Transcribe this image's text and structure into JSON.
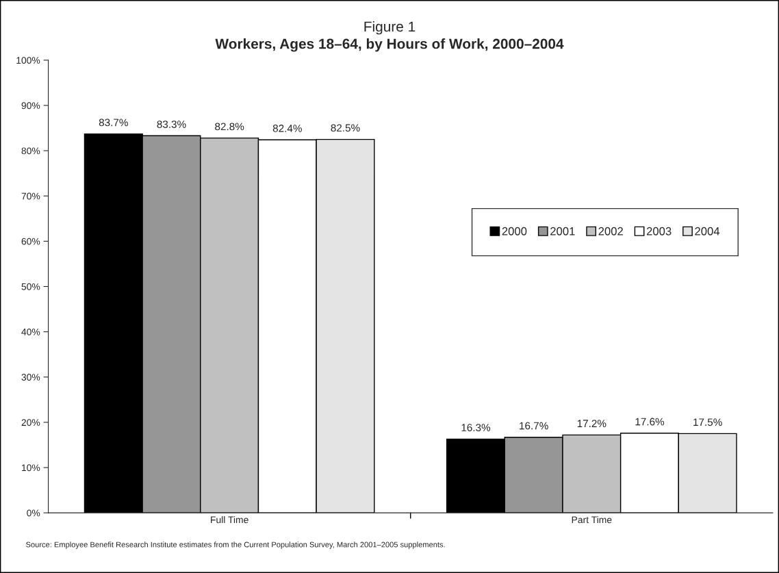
{
  "chart_data": {
    "type": "bar",
    "title": "Figure 1",
    "subtitle": "Workers, Ages 18–64, by Hours of Work, 2000–2004",
    "categories": [
      "Full Time",
      "Part Time"
    ],
    "series": [
      {
        "name": "2000",
        "color": "#000000",
        "values": [
          83.7,
          16.3
        ],
        "value_labels": [
          "83.7%",
          "16.3%"
        ]
      },
      {
        "name": "2001",
        "color": "#969696",
        "values": [
          83.3,
          16.7
        ],
        "value_labels": [
          "83.3%",
          "16.7%"
        ]
      },
      {
        "name": "2002",
        "color": "#c0c0c0",
        "values": [
          82.8,
          17.2
        ],
        "value_labels": [
          "82.8%",
          "17.2%"
        ]
      },
      {
        "name": "2003",
        "color": "#ffffff",
        "values": [
          82.4,
          17.6
        ],
        "value_labels": [
          "82.4%",
          "17.6%"
        ]
      },
      {
        "name": "2004",
        "color": "#e4e4e4",
        "values": [
          82.5,
          17.5
        ],
        "value_labels": [
          "82.5%",
          "17.5%"
        ]
      }
    ],
    "ylim": [
      0,
      100
    ],
    "yticks": [
      {
        "value": 0,
        "label": "0%"
      },
      {
        "value": 10,
        "label": "10%"
      },
      {
        "value": 20,
        "label": "20%"
      },
      {
        "value": 30,
        "label": "30%"
      },
      {
        "value": 40,
        "label": "40%"
      },
      {
        "value": 50,
        "label": "50%"
      },
      {
        "value": 60,
        "label": "60%"
      },
      {
        "value": 70,
        "label": "70%"
      },
      {
        "value": 80,
        "label": "80%"
      },
      {
        "value": 90,
        "label": "90%"
      },
      {
        "value": 100,
        "label": "100%"
      }
    ],
    "grid": false,
    "legend": "right",
    "annotations": [
      "Source: Employee Benefit Research Institute estimates from the Current Population Survey, March 2001–2005 supplements."
    ]
  }
}
